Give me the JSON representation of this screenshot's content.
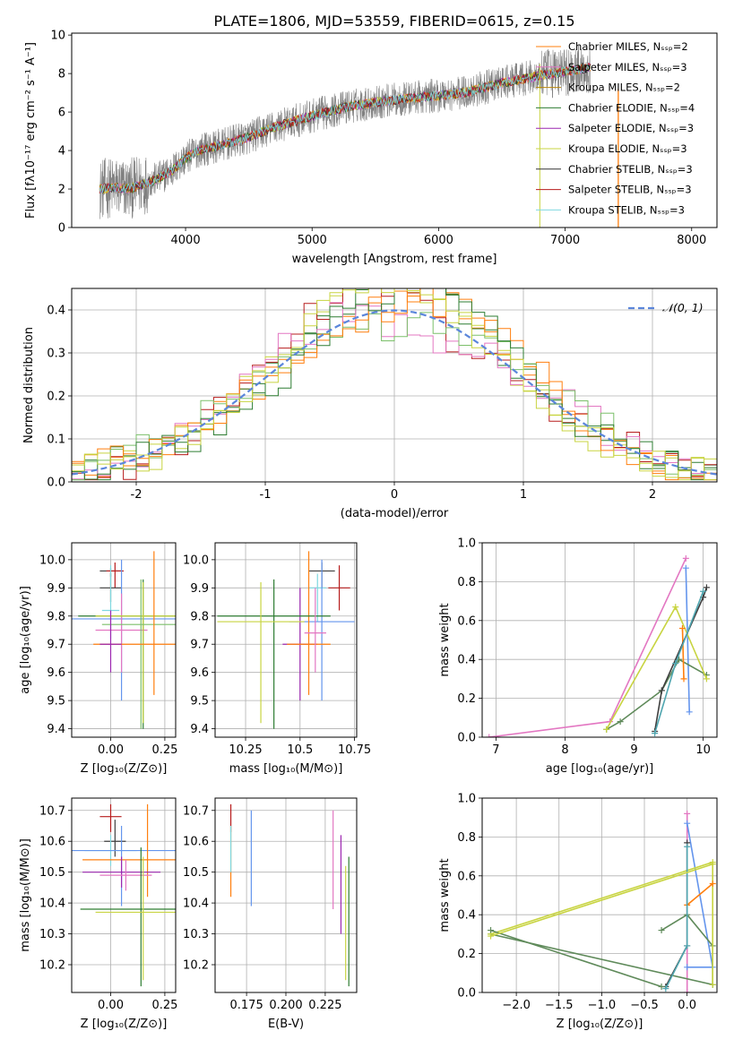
{
  "figure_title": "PLATE=1806, MJD=53559, FIBERID=0615, z=0.15",
  "colors": {
    "observed": "#808080",
    "gauss": "#5b86db",
    "series": [
      "#3f3f3f",
      "#ff7f0e",
      "#b8860b",
      "#2e7d32",
      "#9c27b0",
      "#c8d441",
      "#333333",
      "#b71c1c",
      "#7fd8e0",
      "#e377c2",
      "#6495ed",
      "#7bbf6a"
    ]
  },
  "chart_data": [
    {
      "id": "spectrum",
      "type": "line",
      "xlabel": "wavelength [Angstrom, rest frame]",
      "ylabel": "Flux [fλ10⁻¹⁷ erg cm⁻² s⁻¹ A⁻¹]",
      "xlim": [
        3100,
        8200
      ],
      "ylim": [
        0,
        10.1
      ],
      "xticks": [
        4000,
        5000,
        6000,
        7000,
        8000
      ],
      "yticks": [
        0,
        2,
        4,
        6,
        8,
        10
      ],
      "grid": false,
      "legend_position": "top-right",
      "continuum": [
        [
          3320,
          2.0
        ],
        [
          3450,
          2.1
        ],
        [
          3550,
          2.0
        ],
        [
          3650,
          2.2
        ],
        [
          3800,
          2.6
        ],
        [
          3900,
          3.0
        ],
        [
          4000,
          3.6
        ],
        [
          4100,
          4.0
        ],
        [
          4300,
          4.3
        ],
        [
          4500,
          4.7
        ],
        [
          4700,
          5.2
        ],
        [
          5000,
          5.8
        ],
        [
          5300,
          6.3
        ],
        [
          5600,
          6.6
        ],
        [
          5900,
          6.8
        ],
        [
          6200,
          7.0
        ],
        [
          6500,
          7.5
        ],
        [
          6800,
          7.9
        ],
        [
          7000,
          8.1
        ],
        [
          7200,
          8.3
        ]
      ],
      "series": [
        {
          "name": "Chabrier MILES, Nₛₛₚ=2",
          "color": "#ff7f0e"
        },
        {
          "name": "Salpeter MILES, Nₛₛₚ=3",
          "color": "#e377c2"
        },
        {
          "name": "Kroupa MILES, Nₛₛₚ=2",
          "color": "#b8860b"
        },
        {
          "name": "Chabrier ELODIE, Nₛₛₚ=4",
          "color": "#2e7d32"
        },
        {
          "name": "Salpeter ELODIE, Nₛₛₚ=3",
          "color": "#9c27b0"
        },
        {
          "name": "Kroupa ELODIE, Nₛₛₚ=3",
          "color": "#c8d441"
        },
        {
          "name": "Chabrier STELIB, Nₛₛₚ=3",
          "color": "#333333"
        },
        {
          "name": "Salpeter STELIB, Nₛₛₚ=3",
          "color": "#b71c1c"
        },
        {
          "name": "Kroupa STELIB, Nₛₛₚ=3",
          "color": "#7fd8e0"
        }
      ]
    },
    {
      "id": "residuals",
      "type": "step",
      "xlabel": "(data-model)/error",
      "ylabel": "Normed distribution",
      "xlim": [
        -2.5,
        2.5
      ],
      "ylim": [
        0,
        0.45
      ],
      "xticks": [
        -2,
        -1,
        0,
        1,
        2
      ],
      "yticks": [
        0.0,
        0.1,
        0.2,
        0.3,
        0.4
      ],
      "grid": true,
      "legend_position": "top-right",
      "legend_label": "𝒩(0, 1)",
      "bin_width": 0.1
    },
    {
      "id": "age_vs_Z",
      "type": "errorbar",
      "xlabel": "Z [log₁₀(Z/Z⊙)]",
      "ylabel": "age  [log₁₀(age/yr)]",
      "xlim": [
        -0.18,
        0.3
      ],
      "ylim": [
        9.37,
        10.06
      ],
      "xticks": [
        0.0,
        0.25
      ],
      "xticklabels": [
        "0.00",
        "0.25"
      ],
      "yticks": [
        9.4,
        9.5,
        9.6,
        9.7,
        9.8,
        9.9,
        10.0
      ],
      "grid": true,
      "points": [
        {
          "x": 0.0,
          "y": 9.96,
          "xerr": 0.05,
          "ylo": 9.94,
          "yhi": 9.97,
          "color": "#3f3f3f"
        },
        {
          "x": 0.02,
          "y": 9.96,
          "xerr": 0.04,
          "ylo": 9.9,
          "yhi": 9.99,
          "color": "#b71c1c"
        },
        {
          "x": 0.0,
          "y": 9.9,
          "xerr": 0.05,
          "ylo": 9.85,
          "yhi": 9.95,
          "color": "#3f3f3f"
        },
        {
          "x": 0.0,
          "y": 9.82,
          "xerr": 0.04,
          "ylo": 9.72,
          "yhi": 9.98,
          "color": "#7fd8e0"
        },
        {
          "x": 0.05,
          "y": 9.79,
          "xerr": 0.3,
          "ylo": 9.5,
          "yhi": 10.0,
          "color": "#6495ed"
        },
        {
          "x": 0.05,
          "y": 9.75,
          "xerr": 0.12,
          "ylo": 9.6,
          "yhi": 9.88,
          "color": "#e377c2"
        },
        {
          "x": 0.15,
          "y": 9.8,
          "xerr": 0.3,
          "ylo": 9.4,
          "yhi": 9.93,
          "color": "#2e7d32"
        },
        {
          "x": 0.15,
          "y": 9.8,
          "xerr": 0.22,
          "ylo": 9.42,
          "yhi": 9.92,
          "color": "#c8d441"
        },
        {
          "x": 0.14,
          "y": 9.77,
          "xerr": 0.18,
          "ylo": 9.4,
          "yhi": 9.93,
          "color": "#7bbf6a"
        },
        {
          "x": 0.2,
          "y": 9.7,
          "xerr": 0.28,
          "ylo": 9.52,
          "yhi": 10.03,
          "color": "#ff7f0e"
        },
        {
          "x": 0.0,
          "y": 9.7,
          "xerr": 0.05,
          "ylo": 9.6,
          "yhi": 9.82,
          "color": "#9c27b0"
        }
      ]
    },
    {
      "id": "age_vs_mass",
      "type": "errorbar",
      "xlabel": "mass [log₁₀(M/M⊙)]",
      "ylabel": "",
      "xlim": [
        10.11,
        10.76
      ],
      "ylim": [
        9.37,
        10.06
      ],
      "xticks": [
        10.25,
        10.5,
        10.75
      ],
      "yticks": [
        9.4,
        9.5,
        9.6,
        9.7,
        9.8,
        9.9,
        10.0
      ],
      "grid": true,
      "points": [
        {
          "x": 10.6,
          "y": 9.96,
          "xerr": 0.06,
          "ylo": 9.9,
          "yhi": 9.99,
          "color": "#3f3f3f"
        },
        {
          "x": 10.68,
          "y": 9.9,
          "xerr": 0.05,
          "ylo": 9.82,
          "yhi": 9.98,
          "color": "#b71c1c"
        },
        {
          "x": 10.58,
          "y": 9.9,
          "xerr": 0.04,
          "ylo": 9.78,
          "yhi": 9.95,
          "color": "#7fd8e0"
        },
        {
          "x": 10.6,
          "y": 9.78,
          "xerr": 0.15,
          "ylo": 9.5,
          "yhi": 10.0,
          "color": "#6495ed"
        },
        {
          "x": 10.5,
          "y": 9.7,
          "xerr": 0.08,
          "ylo": 9.5,
          "yhi": 9.9,
          "color": "#9c27b0"
        },
        {
          "x": 10.54,
          "y": 9.7,
          "xerr": 0.1,
          "ylo": 9.52,
          "yhi": 10.03,
          "color": "#ff7f0e"
        },
        {
          "x": 10.38,
          "y": 9.8,
          "xerr": 0.26,
          "ylo": 9.4,
          "yhi": 9.93,
          "color": "#2e7d32"
        },
        {
          "x": 10.32,
          "y": 9.78,
          "xerr": 0.2,
          "ylo": 9.42,
          "yhi": 9.92,
          "color": "#c8d441"
        },
        {
          "x": 10.57,
          "y": 9.74,
          "xerr": 0.05,
          "ylo": 9.6,
          "yhi": 9.9,
          "color": "#e377c2"
        }
      ]
    },
    {
      "id": "weight_vs_age",
      "type": "line",
      "xlabel": "age  [log₁₀(age/yr)]",
      "ylabel": "mass weight",
      "xlim": [
        6.8,
        10.2
      ],
      "ylim": [
        0.0,
        1.0
      ],
      "xticks": [
        7,
        8,
        9,
        10
      ],
      "yticks": [
        0.0,
        0.2,
        0.4,
        0.6,
        0.8,
        1.0
      ],
      "grid": true,
      "series": [
        {
          "color": "#e377c2",
          "points": [
            [
              6.9,
              0.0
            ],
            [
              8.65,
              0.08
            ],
            [
              9.75,
              0.92
            ]
          ]
        },
        {
          "color": "#6495ed",
          "points": [
            [
              9.8,
              0.13
            ],
            [
              9.75,
              0.87
            ]
          ]
        },
        {
          "color": "#5f8a5a",
          "points": [
            [
              8.6,
              0.04
            ],
            [
              8.8,
              0.08
            ],
            [
              9.4,
              0.24
            ],
            [
              9.65,
              0.4
            ],
            [
              10.05,
              0.32
            ]
          ]
        },
        {
          "color": "#c8d441",
          "points": [
            [
              8.6,
              0.04
            ],
            [
              9.6,
              0.67
            ],
            [
              10.05,
              0.3
            ]
          ]
        },
        {
          "color": "#ff7f0e",
          "points": [
            [
              9.7,
              0.56
            ],
            [
              9.72,
              0.3
            ]
          ]
        },
        {
          "color": "#3f3f3f",
          "points": [
            [
              9.3,
              0.03
            ],
            [
              9.4,
              0.24
            ],
            [
              10.0,
              0.72
            ],
            [
              10.05,
              0.77
            ]
          ]
        },
        {
          "color": "#4fa6b0",
          "points": [
            [
              9.3,
              0.02
            ],
            [
              9.6,
              0.38
            ],
            [
              10.0,
              0.75
            ]
          ]
        }
      ]
    },
    {
      "id": "mass_vs_Z",
      "type": "errorbar",
      "xlabel": "Z [log₁₀(Z/Z⊙)]",
      "ylabel": "mass [log₁₀(M/M⊙)]",
      "xlim": [
        -0.18,
        0.3
      ],
      "ylim": [
        10.11,
        10.74
      ],
      "xticks": [
        0.0,
        0.25
      ],
      "xticklabels": [
        "0.00",
        "0.25"
      ],
      "yticks": [
        10.2,
        10.3,
        10.4,
        10.5,
        10.6,
        10.7
      ],
      "grid": true,
      "points": [
        {
          "x": 0.0,
          "y": 10.68,
          "xerr": 0.05,
          "ylo": 10.63,
          "yhi": 10.72,
          "color": "#b71c1c"
        },
        {
          "x": 0.02,
          "y": 10.6,
          "xerr": 0.05,
          "ylo": 10.55,
          "yhi": 10.67,
          "color": "#3f3f3f"
        },
        {
          "x": 0.0,
          "y": 10.57,
          "xerr": 0.12,
          "ylo": 10.52,
          "yhi": 10.62,
          "color": "#7fd8e0"
        },
        {
          "x": 0.05,
          "y": 10.57,
          "xerr": 0.3,
          "ylo": 10.39,
          "yhi": 10.65,
          "color": "#6495ed"
        },
        {
          "x": 0.17,
          "y": 10.54,
          "xerr": 0.3,
          "ylo": 10.42,
          "yhi": 10.72,
          "color": "#ff7f0e"
        },
        {
          "x": 0.05,
          "y": 10.5,
          "xerr": 0.18,
          "ylo": 10.45,
          "yhi": 10.55,
          "color": "#9c27b0"
        },
        {
          "x": 0.07,
          "y": 10.49,
          "xerr": 0.12,
          "ylo": 10.44,
          "yhi": 10.54,
          "color": "#e377c2"
        },
        {
          "x": 0.14,
          "y": 10.38,
          "xerr": 0.28,
          "ylo": 10.13,
          "yhi": 10.58,
          "color": "#2e7d32"
        },
        {
          "x": 0.15,
          "y": 10.37,
          "xerr": 0.22,
          "ylo": 10.15,
          "yhi": 10.55,
          "color": "#c8d441"
        }
      ]
    },
    {
      "id": "mass_vs_ebv",
      "type": "errorbar",
      "xlabel": "E(B-V)",
      "ylabel": "",
      "xlim": [
        0.155,
        0.245
      ],
      "ylim": [
        10.11,
        10.74
      ],
      "xticks": [
        0.175,
        0.2,
        0.225
      ],
      "xticklabels": [
        "0.175",
        "0.200",
        "0.225"
      ],
      "yticks": [
        10.2,
        10.3,
        10.4,
        10.5,
        10.6,
        10.7
      ],
      "grid": true,
      "points": [
        {
          "x": 0.165,
          "y": 10.68,
          "ylo": 10.63,
          "yhi": 10.72,
          "color": "#b71c1c"
        },
        {
          "x": 0.165,
          "y": 10.55,
          "ylo": 10.42,
          "yhi": 10.65,
          "color": "#ff7f0e"
        },
        {
          "x": 0.165,
          "y": 10.6,
          "ylo": 10.5,
          "yhi": 10.65,
          "color": "#7fd8e0"
        },
        {
          "x": 0.178,
          "y": 10.55,
          "ylo": 10.39,
          "yhi": 10.7,
          "color": "#6495ed"
        },
        {
          "x": 0.23,
          "y": 10.55,
          "ylo": 10.38,
          "yhi": 10.7,
          "color": "#e377c2"
        },
        {
          "x": 0.235,
          "y": 10.45,
          "ylo": 10.3,
          "yhi": 10.62,
          "color": "#9c27b0"
        },
        {
          "x": 0.238,
          "y": 10.38,
          "ylo": 10.15,
          "yhi": 10.52,
          "color": "#c8d441"
        },
        {
          "x": 0.24,
          "y": 10.38,
          "ylo": 10.13,
          "yhi": 10.55,
          "color": "#2e7d32"
        }
      ]
    },
    {
      "id": "weight_vs_Z",
      "type": "line",
      "xlabel": "Z [log₁₀(Z/Z⊙)]",
      "ylabel": "mass weight",
      "xlim": [
        -2.4,
        0.35
      ],
      "ylim": [
        0.0,
        1.0
      ],
      "xticks": [
        -2.0,
        -1.5,
        -1.0,
        -0.5,
        0.0
      ],
      "xticklabels": [
        "−2.0",
        "−1.5",
        "−1.0",
        "−0.5",
        "0.0"
      ],
      "yticks": [
        0.0,
        0.2,
        0.4,
        0.6,
        0.8,
        1.0
      ],
      "grid": true,
      "series": [
        {
          "color": "#e377c2",
          "points": [
            [
              0.0,
              0.92
            ],
            [
              0.0,
              0.0
            ]
          ]
        },
        {
          "color": "#6495ed",
          "points": [
            [
              0.0,
              0.87
            ],
            [
              0.3,
              0.13
            ],
            [
              0.0,
              0.13
            ]
          ]
        },
        {
          "color": "#5f8a5a",
          "points": [
            [
              -2.3,
              0.3
            ],
            [
              0.3,
              0.04
            ],
            [
              0.3,
              0.24
            ],
            [
              0.0,
              0.4
            ],
            [
              -0.3,
              0.32
            ]
          ]
        },
        {
          "color": "#c8d441",
          "points": [
            [
              -2.3,
              0.3
            ],
            [
              0.3,
              0.67
            ],
            [
              0.3,
              0.04
            ]
          ]
        },
        {
          "color": "#ff7f0e",
          "points": [
            [
              0.0,
              0.45
            ],
            [
              0.3,
              0.56
            ]
          ]
        },
        {
          "color": "#3f3f3f",
          "points": [
            [
              -0.25,
              0.03
            ],
            [
              0.0,
              0.24
            ],
            [
              0.0,
              0.77
            ]
          ]
        },
        {
          "color": "#4fa6b0",
          "points": [
            [
              -0.25,
              0.02
            ],
            [
              0.0,
              0.24
            ],
            [
              0.0,
              0.75
            ]
          ]
        },
        {
          "color": "#5f8a5a",
          "points": [
            [
              -2.3,
              0.32
            ],
            [
              -0.3,
              0.03
            ]
          ]
        },
        {
          "color": "#c8d441",
          "points": [
            [
              -2.3,
              0.29
            ],
            [
              0.3,
              0.66
            ]
          ]
        }
      ]
    }
  ]
}
